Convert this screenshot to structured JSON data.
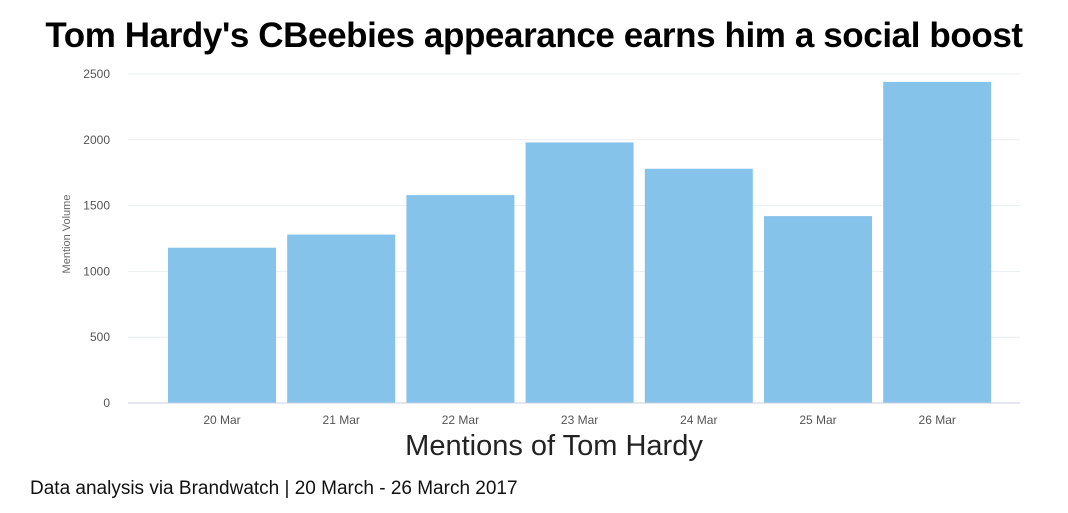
{
  "title": "Tom Hardy's CBeebies appearance earns him a social boost",
  "source": "Data analysis via Brandwatch | 20 March - 26 March 2017",
  "chart_data": {
    "type": "bar",
    "categories": [
      "20 Mar",
      "21 Mar",
      "22 Mar",
      "23 Mar",
      "24 Mar",
      "25 Mar",
      "26 Mar"
    ],
    "values": [
      1180,
      1280,
      1580,
      1980,
      1780,
      1420,
      2440
    ],
    "title": "Tom Hardy's CBeebies appearance earns him a social boost",
    "xlabel": "Mentions of Tom Hardy",
    "ylabel": "Mention Volume",
    "ylim": [
      0,
      2500
    ],
    "yticks": [
      0,
      500,
      1000,
      1500,
      2000,
      2500
    ],
    "grid": true,
    "legend": "none",
    "bar_color": "#85c3ea"
  }
}
